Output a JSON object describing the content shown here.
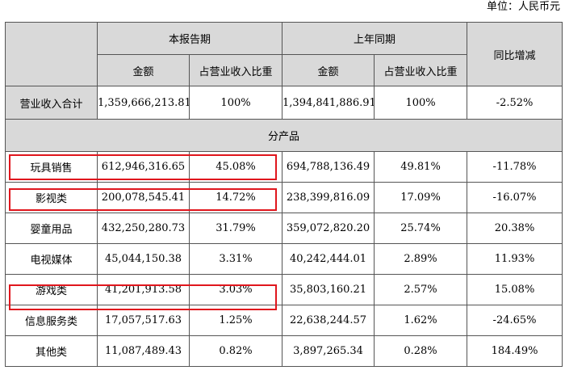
{
  "unit_label": "单位：人民币元",
  "header": {
    "current_period": "本报告期",
    "previous_period": "上年同期",
    "yoy_change": "同比增减",
    "amount": "金额",
    "share_of_revenue": "占营业收入比重"
  },
  "total_row": {
    "label": "营业收入合计",
    "current_amount": "1,359,666,213.81",
    "current_share": "100%",
    "previous_amount": "1,394,841,886.91",
    "previous_share": "100%",
    "yoy": "-2.52%"
  },
  "section_label": "分产品",
  "rows": [
    {
      "label": "玩具销售",
      "current_amount": "612,946,316.65",
      "current_share": "45.08%",
      "previous_amount": "694,788,136.49",
      "previous_share": "49.81%",
      "yoy": "-11.78%"
    },
    {
      "label": "影视类",
      "current_amount": "200,078,545.41",
      "current_share": "14.72%",
      "previous_amount": "238,399,816.09",
      "previous_share": "17.09%",
      "yoy": "-16.07%"
    },
    {
      "label": "婴童用品",
      "current_amount": "432,250,280.73",
      "current_share": "31.79%",
      "previous_amount": "359,072,820.20",
      "previous_share": "25.74%",
      "yoy": "20.38%"
    },
    {
      "label": "电视媒体",
      "current_amount": "45,044,150.38",
      "current_share": "3.31%",
      "previous_amount": "40,242,444.01",
      "previous_share": "2.89%",
      "yoy": "11.93%"
    },
    {
      "label": "游戏类",
      "current_amount": "41,201,913.58",
      "current_share": "3.03%",
      "previous_amount": "35,803,160.21",
      "previous_share": "2.57%",
      "yoy": "15.08%"
    },
    {
      "label": "信息服务类",
      "current_amount": "17,057,517.63",
      "current_share": "1.25%",
      "previous_amount": "22,638,244.57",
      "previous_share": "1.62%",
      "yoy": "-24.65%"
    },
    {
      "label": "其他类",
      "current_amount": "11,087,489.43",
      "current_share": "0.82%",
      "previous_amount": "3,897,265.34",
      "previous_share": "0.28%",
      "yoy": "184.49%"
    }
  ],
  "highlighted_row_labels": [
    "玩具销售",
    "影视类",
    "游戏类"
  ],
  "colors": {
    "header_shade": "#d9d9d9",
    "highlight_border": "#e0161d"
  }
}
